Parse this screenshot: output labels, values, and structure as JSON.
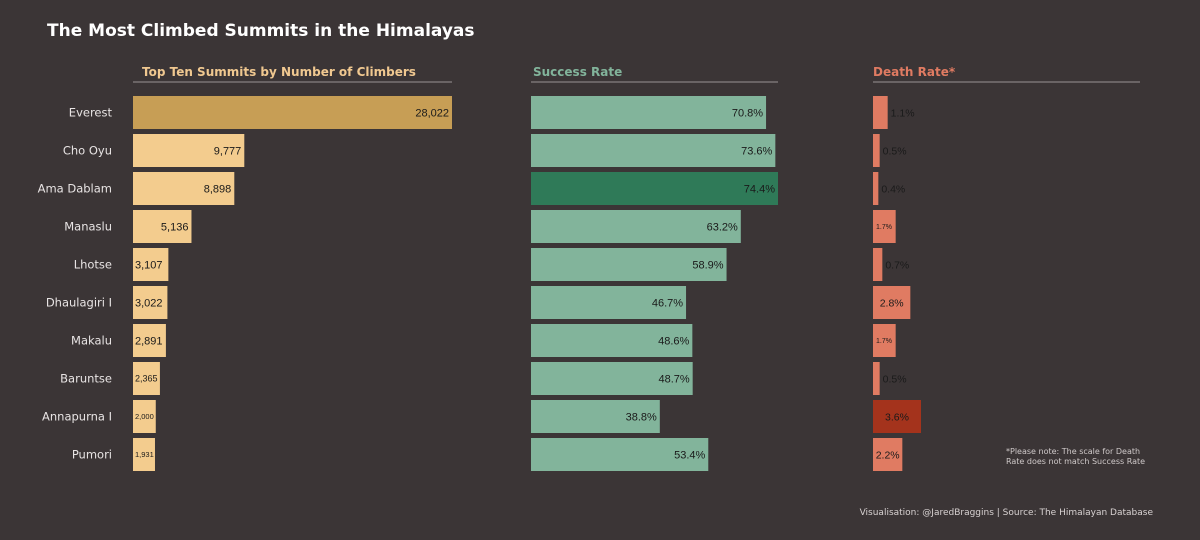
{
  "title": "The Most Climbed Summits in the Himalayas",
  "note_lines": [
    "*Please note: The scale for Death",
    "Rate does not match Success Rate"
  ],
  "credit": "Visualisation: @JaredBraggins | Source: The Himalayan Database",
  "colors": {
    "background": "#3b3536",
    "climbers_bar": "#f3cc8e",
    "climbers_highlight": "#c79e55",
    "climbers_title": "#f0c890",
    "success_bar": "#82b49b",
    "success_highlight": "#2f7a58",
    "success_title": "#82b49b",
    "death_bar": "#e07b62",
    "death_highlight": "#a4331c",
    "death_title": "#e07b62",
    "rule": "#9a9494"
  },
  "chart_data": [
    {
      "type": "bar",
      "orientation": "horizontal",
      "title": "Top Ten Summits by Number of Climbers",
      "categories": [
        "Everest",
        "Cho Oyu",
        "Ama Dablam",
        "Manaslu",
        "Lhotse",
        "Dhaulagiri I",
        "Makalu",
        "Baruntse",
        "Annapurna I",
        "Pumori"
      ],
      "values": [
        28022,
        9777,
        8898,
        5136,
        3107,
        3022,
        2891,
        2365,
        2000,
        1931
      ],
      "value_labels": [
        "28,022",
        "9,777",
        "8,898",
        "5,136",
        "3,107",
        "3,022",
        "2,891",
        "2,365",
        "2,000",
        "1,931"
      ],
      "highlight": "Everest",
      "xlim": [
        0,
        28022
      ]
    },
    {
      "type": "bar",
      "orientation": "horizontal",
      "title": "Success Rate",
      "categories": [
        "Everest",
        "Cho Oyu",
        "Ama Dablam",
        "Manaslu",
        "Lhotse",
        "Dhaulagiri I",
        "Makalu",
        "Baruntse",
        "Annapurna I",
        "Pumori"
      ],
      "values": [
        70.8,
        73.6,
        74.4,
        63.2,
        58.9,
        46.7,
        48.6,
        48.7,
        38.8,
        53.4
      ],
      "value_labels": [
        "70.8%",
        "73.6%",
        "74.4%",
        "63.2%",
        "58.9%",
        "46.7%",
        "48.6%",
        "48.7%",
        "38.8%",
        "53.4%"
      ],
      "highlight": "Ama Dablam",
      "xlim": [
        0,
        74.4
      ]
    },
    {
      "type": "bar",
      "orientation": "horizontal",
      "title": "Death Rate*",
      "categories": [
        "Everest",
        "Cho Oyu",
        "Ama Dablam",
        "Manaslu",
        "Lhotse",
        "Dhaulagiri I",
        "Makalu",
        "Baruntse",
        "Annapurna I",
        "Pumori"
      ],
      "values": [
        1.1,
        0.5,
        0.4,
        1.7,
        0.7,
        2.8,
        1.7,
        0.5,
        3.6,
        2.2
      ],
      "value_labels": [
        "1.1%",
        "0.5%",
        "0.4%",
        "1.7%",
        "0.7%",
        "2.8%",
        "1.7%",
        "0.5%",
        "3.6%",
        "2.2%"
      ],
      "highlight": "Annapurna I",
      "xlim": [
        0,
        3.6
      ]
    }
  ]
}
